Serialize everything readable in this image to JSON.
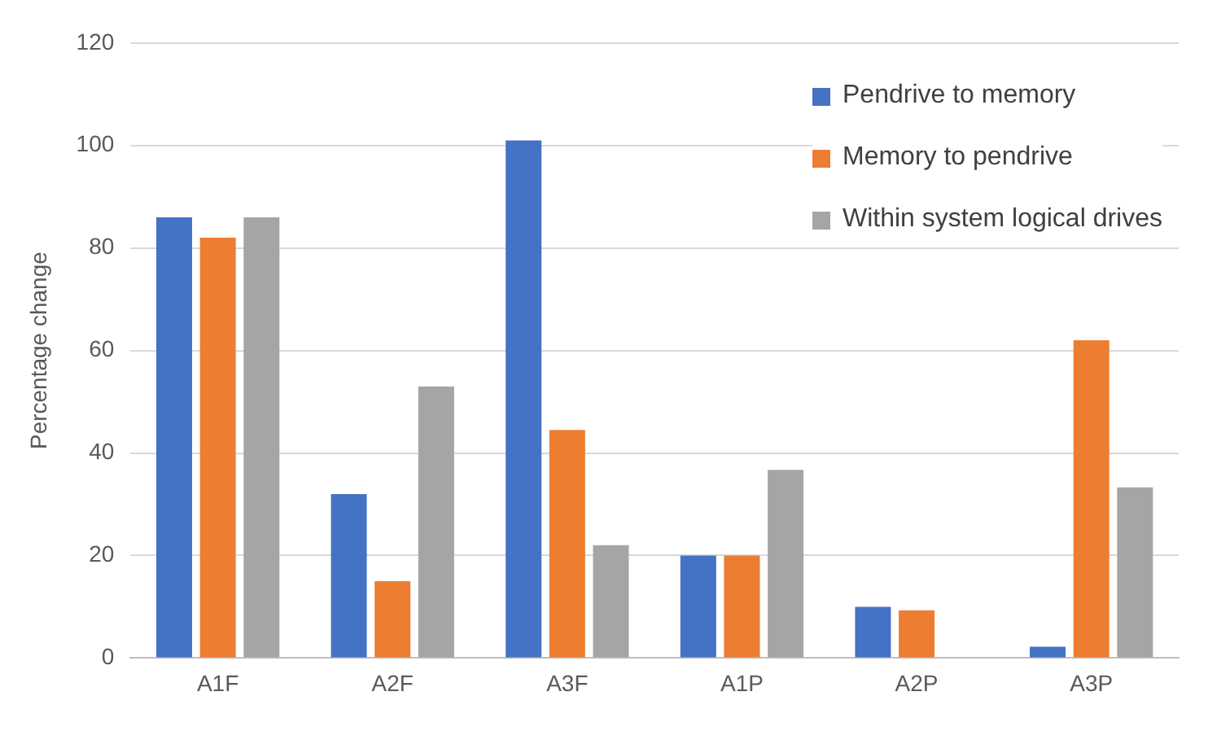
{
  "chart_data": {
    "type": "bar",
    "ylabel": "Percentage change",
    "categories": [
      "A1F",
      "A2F",
      "A3F",
      "A1P",
      "A2P",
      "A3P"
    ],
    "series": [
      {
        "name": "Pendrive to memory",
        "color": "#4472c4",
        "values": [
          86,
          32,
          101,
          20,
          10,
          2.2
        ]
      },
      {
        "name": "Memory to pendrive",
        "color": "#ed7d31",
        "values": [
          82,
          15,
          44.5,
          20,
          9.3,
          62
        ]
      },
      {
        "name": "Within system logical drives",
        "color": "#a5a5a5",
        "values": [
          86,
          53,
          22,
          36.7,
          0,
          33.3
        ]
      }
    ],
    "ylim": [
      0,
      120
    ],
    "yticks": [
      0,
      20,
      40,
      60,
      80,
      100,
      120
    ],
    "grid": "y",
    "legend": "top right"
  }
}
